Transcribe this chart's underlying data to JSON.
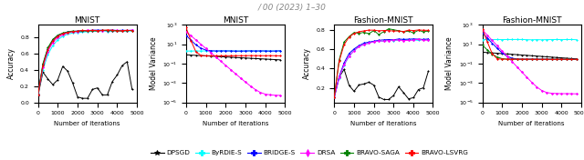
{
  "title_header": "/ 00 (2023) 1–30",
  "subplot_titles": [
    "MNIST",
    "MNIST",
    "Fashion-MNIST",
    "Fashion-MNIST"
  ],
  "ylabel1": "Accuracy",
  "ylabel2": "Model Variance",
  "ylabel3": "Accuracy",
  "ylabel4": "Model Variance",
  "xlabel": "Number of iterations",
  "legend_entries": [
    "DPSGD",
    "ByRDiE-S",
    "BRIDGE-S",
    "DRSA",
    "BRAVO-SAGA",
    "BRAVO-LSVRG"
  ],
  "legend_colors": [
    "black",
    "cyan",
    "blue",
    "magenta",
    "green",
    "red"
  ],
  "legend_markers": [
    "*",
    "P",
    "P",
    "d",
    "P",
    "P"
  ],
  "n_pts": 300,
  "seed": 7
}
